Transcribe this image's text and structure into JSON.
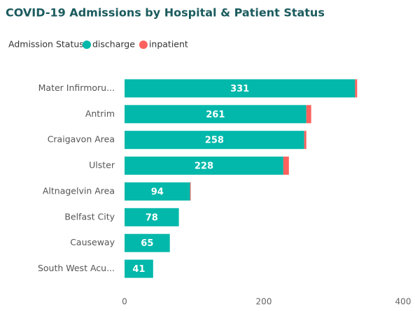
{
  "chart_data": {
    "type": "stacked-bar-horizontal",
    "title": "COVID-19 Admissions by Hospital & Patient Status",
    "legend_title": "Admission Status",
    "categories": [
      "Mater Infirmoru...",
      "Antrim",
      "Craigavon Area",
      "Ulster",
      "Altnagelvin Area",
      "Belfast City",
      "Causeway",
      "South West Acu..."
    ],
    "series": [
      {
        "name": "discharge",
        "color": "#01b8aa",
        "values": [
          331,
          261,
          258,
          228,
          94,
          78,
          65,
          41
        ]
      },
      {
        "name": "inpatient",
        "color": "#fd625e",
        "values": [
          3,
          7,
          3,
          8,
          1,
          0,
          0,
          0
        ]
      }
    ],
    "xlim": [
      0,
      400
    ],
    "xticks": [
      0,
      200,
      400
    ],
    "grid": false,
    "legend": "top-left"
  }
}
